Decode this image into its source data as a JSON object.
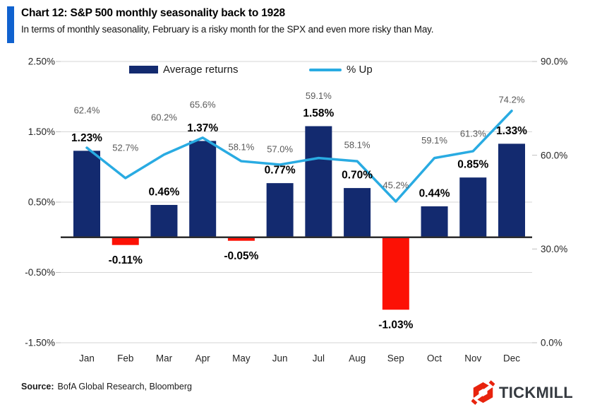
{
  "header": {
    "title": "Chart 12: S&P 500 monthly seasonality back to 1928",
    "subtitle": "In terms of monthly seasonality, February is a risky month for the SPX and even more risky than May.",
    "accent_color": "#1062CF"
  },
  "legend": {
    "items": [
      {
        "label": "Average returns",
        "type": "bar",
        "color": "#132A6F"
      },
      {
        "label": "% Up",
        "type": "line",
        "color": "#29ABE2"
      }
    ]
  },
  "chart_data": {
    "type": "bar+line",
    "categories": [
      "Jan",
      "Feb",
      "Mar",
      "Apr",
      "May",
      "Jun",
      "Jul",
      "Aug",
      "Sep",
      "Oct",
      "Nov",
      "Dec"
    ],
    "series": [
      {
        "name": "Average returns",
        "chart_type": "bar",
        "axis": "left",
        "values": [
          1.23,
          -0.11,
          0.46,
          1.37,
          -0.05,
          0.77,
          1.58,
          0.7,
          -1.03,
          0.44,
          0.85,
          1.33
        ],
        "data_labels": [
          "1.23%",
          "-0.11%",
          "0.46%",
          "1.37%",
          "-0.05%",
          "0.77%",
          "1.58%",
          "0.70%",
          "-1.03%",
          "0.44%",
          "0.85%",
          "1.33%"
        ],
        "color_positive": "#132A6F",
        "color_negative": "#FC1105",
        "label_color": "#000000"
      },
      {
        "name": "% Up",
        "chart_type": "line",
        "axis": "right",
        "values": [
          62.4,
          52.7,
          60.2,
          65.6,
          58.1,
          57.0,
          59.1,
          58.1,
          45.2,
          59.1,
          61.3,
          74.2
        ],
        "data_labels": [
          "62.4%",
          "52.7%",
          "60.2%",
          "65.6%",
          "58.1%",
          "57.0%",
          "59.1%",
          "58.1%",
          "45.2%",
          "59.1%",
          "61.3%",
          "74.2%"
        ],
        "color": "#29ABE2",
        "label_color": "#595959"
      }
    ],
    "left_axis": {
      "min": -1.5,
      "max": 2.5,
      "tick_labels": [
        "2.50%",
        "1.50%",
        "0.50%",
        "-0.50%",
        "-1.50%"
      ]
    },
    "right_axis": {
      "min": 0.0,
      "max": 90.0,
      "tick_labels": [
        "90.0%",
        "60.0%",
        "30.0%",
        "0.0%"
      ]
    },
    "grid": true,
    "legend_position": "top-center",
    "gridline_color": "#D6D6D6",
    "zero_line_color": "#2E2E2E",
    "axis_label_color": "#262626",
    "pct_label_center_offsets": [
      53,
      43,
      53,
      47,
      20,
      22,
      88,
      23,
      23,
      25,
      25,
      16
    ]
  },
  "footer": {
    "source_label": "Source:",
    "source_text": "BofA Global Research, Bloomberg",
    "brand_name": "TICKMILL",
    "brand_icon": "tickmill-hexagon-logo",
    "brand_color": "#E8230D",
    "brand_text_color": "#353A40"
  }
}
